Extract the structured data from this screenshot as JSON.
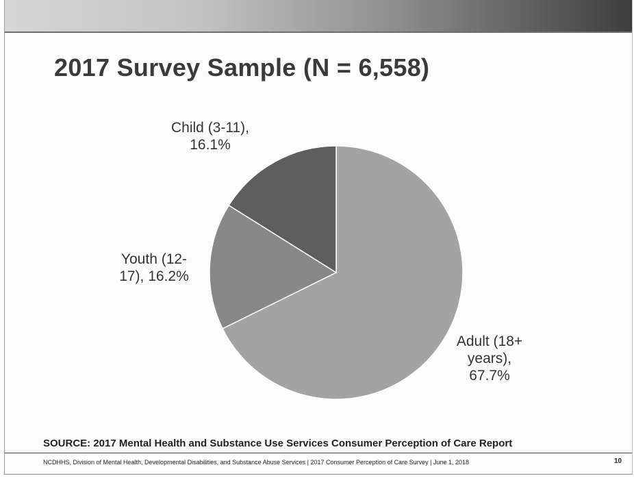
{
  "slide": {
    "title": "2017 Survey Sample (N = 6,558)",
    "source": "SOURCE: 2017 Mental Health and Substance Use Services Consumer Perception of Care Report",
    "footer": "NCDHHS, Division of Mental Health, Developmental Disabilities, and Substance Abuse Services | 2017 Consumer Perception of Care Survey | June 1, 2018",
    "page_number": "10"
  },
  "chart_data": {
    "type": "pie",
    "title": "2017 Survey Sample (N = 6,558)",
    "slices": [
      {
        "label_lines": [
          "Adult (18+",
          "years),",
          "67.7%"
        ],
        "value": 67.7,
        "color": "#a3a3a3"
      },
      {
        "label_lines": [
          "Youth (12-",
          "17), 16.2%"
        ],
        "value": 16.2,
        "color": "#888888"
      },
      {
        "label_lines": [
          "Child (3-11),",
          "16.1%"
        ],
        "value": 16.1,
        "color": "#5e5e5e"
      }
    ],
    "start": "12 o'clock",
    "direction": "clockwise",
    "legend": "none"
  }
}
